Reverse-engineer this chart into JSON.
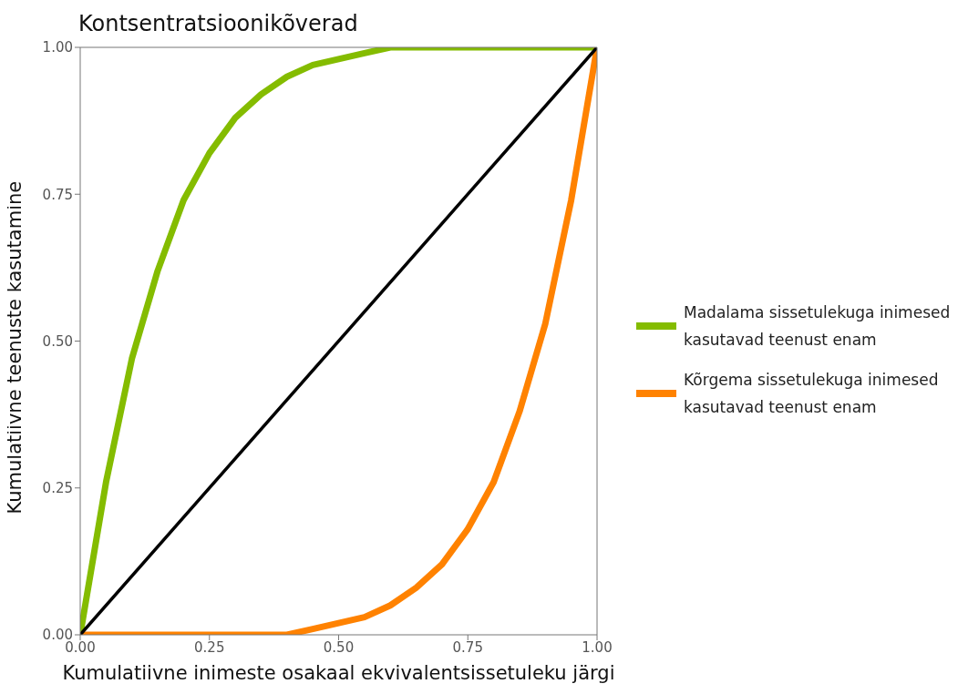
{
  "chart_data": {
    "type": "line",
    "title": "Kontsentratsioonikõverad",
    "xlabel": "Kumulatiivne inimeste osakaal ekvivalentsissetuleku järgi",
    "ylabel": "Kumulatiivne teenuste kasutamine",
    "x": [
      0,
      0.05,
      0.1,
      0.15,
      0.2,
      0.25,
      0.3,
      0.35,
      0.4,
      0.45,
      0.5,
      0.55,
      0.6,
      0.65,
      0.7,
      0.75,
      0.8,
      0.85,
      0.9,
      0.95,
      1
    ],
    "series": [
      {
        "name": "Madalama sissetulekuga inimesed\nkasutavad teenust enam",
        "color": "#84bc00",
        "values": [
          0,
          0.26,
          0.47,
          0.62,
          0.74,
          0.82,
          0.88,
          0.92,
          0.95,
          0.97,
          0.98,
          0.99,
          1,
          1,
          1,
          1,
          1,
          1,
          1,
          1,
          1
        ]
      },
      {
        "name": "Kõrgema sissetulekuga inimesed\nkasutavad teenust enam",
        "color": "#ff8200",
        "values": [
          0,
          0,
          0,
          0,
          0,
          0,
          0,
          0,
          0,
          0.01,
          0.02,
          0.03,
          0.05,
          0.08,
          0.12,
          0.18,
          0.26,
          0.38,
          0.53,
          0.74,
          1
        ]
      },
      {
        "color": "#000000",
        "x": [
          0,
          1
        ],
        "values": [
          0,
          1
        ]
      }
    ],
    "xlim": [
      0,
      1
    ],
    "ylim": [
      0,
      1
    ],
    "xticks": [
      {
        "value": 0,
        "label": "0.00"
      },
      {
        "value": 0.25,
        "label": "0.25"
      },
      {
        "value": 0.5,
        "label": "0.50"
      },
      {
        "value": 0.75,
        "label": "0.75"
      },
      {
        "value": 1,
        "label": "1.00"
      }
    ],
    "yticks": [
      {
        "value": 0,
        "label": "0.00"
      },
      {
        "value": 0.25,
        "label": "0.25"
      },
      {
        "value": 0.5,
        "label": "0.50"
      },
      {
        "value": 0.75,
        "label": "0.75"
      },
      {
        "value": 1,
        "label": "1.00"
      }
    ],
    "grid": false,
    "legend": "right",
    "marker": "none",
    "line_style": "solid"
  }
}
